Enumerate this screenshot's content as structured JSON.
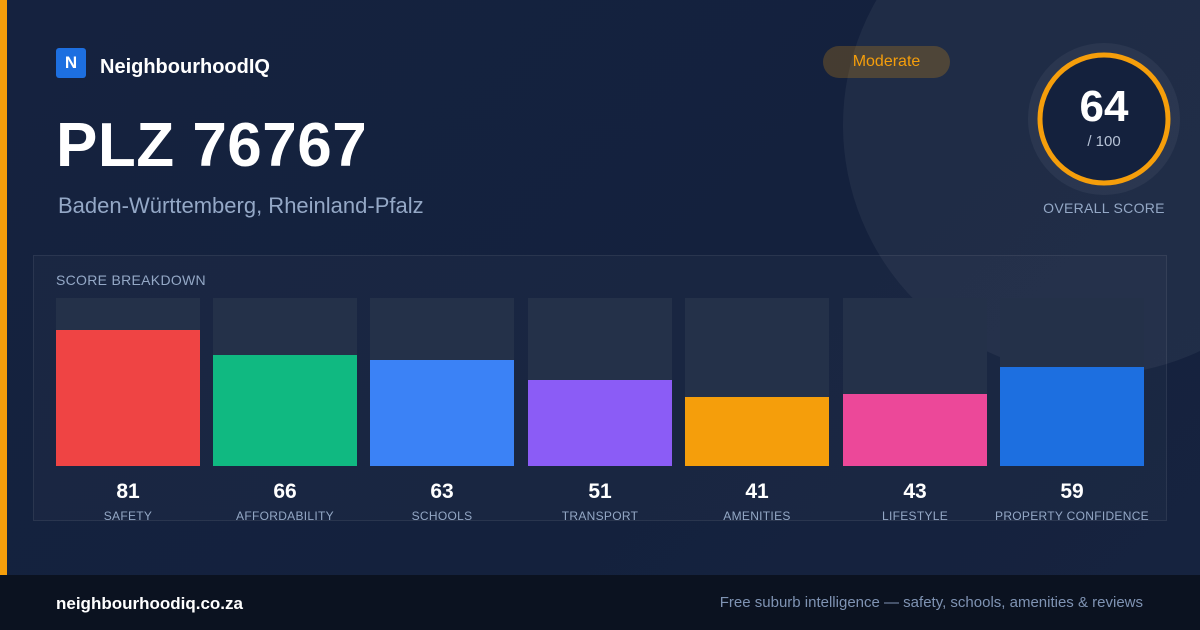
{
  "brand": {
    "logo_letter": "N",
    "name": "NeighbourhoodIQ"
  },
  "header": {
    "title": "PLZ 76767",
    "subtitle": "Baden-Württemberg, Rheinland-Pfalz",
    "badge": "Moderate"
  },
  "score": {
    "value": "64",
    "max_label": "/ 100",
    "max": 100,
    "label": "OVERALL SCORE",
    "ring_color": "#f59e0b"
  },
  "breakdown": {
    "title": "SCORE BREAKDOWN",
    "items": [
      {
        "label": "SAFETY",
        "value": 81,
        "color": "#ef4444"
      },
      {
        "label": "AFFORDABILITY",
        "value": 66,
        "color": "#10b981"
      },
      {
        "label": "SCHOOLS",
        "value": 63,
        "color": "#3b82f6"
      },
      {
        "label": "TRANSPORT",
        "value": 51,
        "color": "#8b5cf6"
      },
      {
        "label": "AMENITIES",
        "value": 41,
        "color": "#f59e0b"
      },
      {
        "label": "LIFESTYLE",
        "value": 43,
        "color": "#ec4899"
      },
      {
        "label": "PROPERTY CONFIDENCE",
        "value": 59,
        "color": "#1d6fe0"
      }
    ]
  },
  "footer": {
    "url": "neighbourhoodiq.co.za",
    "tagline": "Free suburb intelligence — safety, schools, amenities & reviews"
  }
}
